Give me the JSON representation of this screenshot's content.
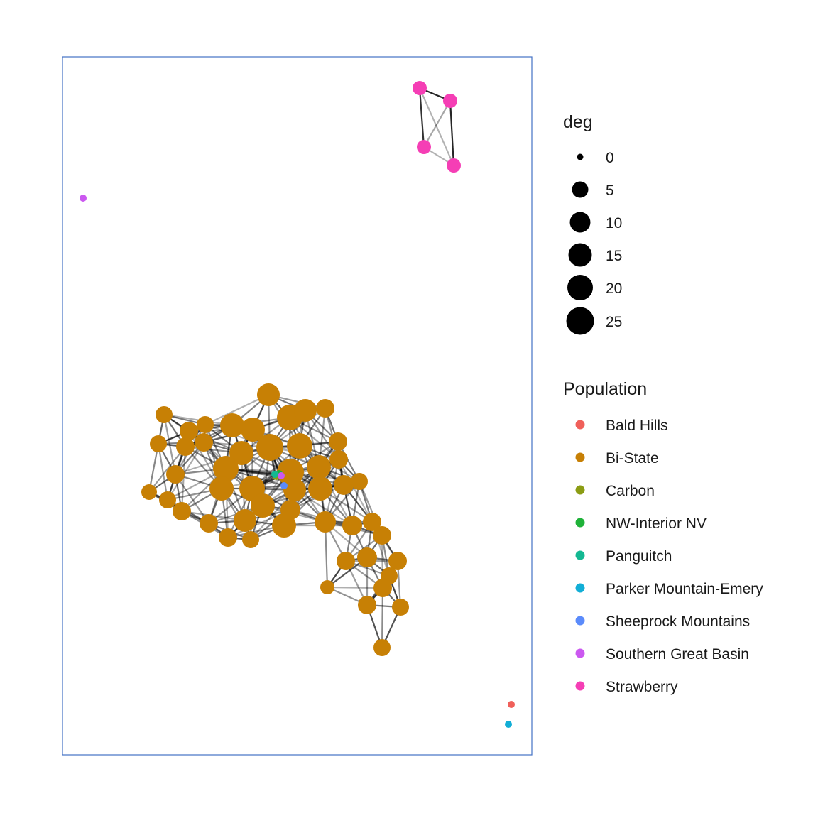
{
  "colors": {
    "panel_border": "#4472c4",
    "edge": "#000000",
    "size_key": "#000000"
  },
  "legend_deg": {
    "title": "deg",
    "breaks": [
      {
        "label": "0",
        "value": 0
      },
      {
        "label": "5",
        "value": 5
      },
      {
        "label": "10",
        "value": 10
      },
      {
        "label": "15",
        "value": 15
      },
      {
        "label": "20",
        "value": 20
      },
      {
        "label": "25",
        "value": 25
      }
    ]
  },
  "legend_population": {
    "title": "Population",
    "items": [
      {
        "label": "Bald Hills",
        "color": "#f0605a"
      },
      {
        "label": "Bi-State",
        "color": "#c78005"
      },
      {
        "label": "Carbon",
        "color": "#8b9c13"
      },
      {
        "label": "NW-Interior NV",
        "color": "#1fb239"
      },
      {
        "label": "Panguitch",
        "color": "#14b892"
      },
      {
        "label": "Parker Mountain-Emery",
        "color": "#12aed6"
      },
      {
        "label": "Sheeprock Mountains",
        "color": "#5b8bfb"
      },
      {
        "label": "Southern Great Basin",
        "color": "#cb58f0"
      },
      {
        "label": "Strawberry",
        "color": "#f53eb5"
      }
    ]
  }
}
